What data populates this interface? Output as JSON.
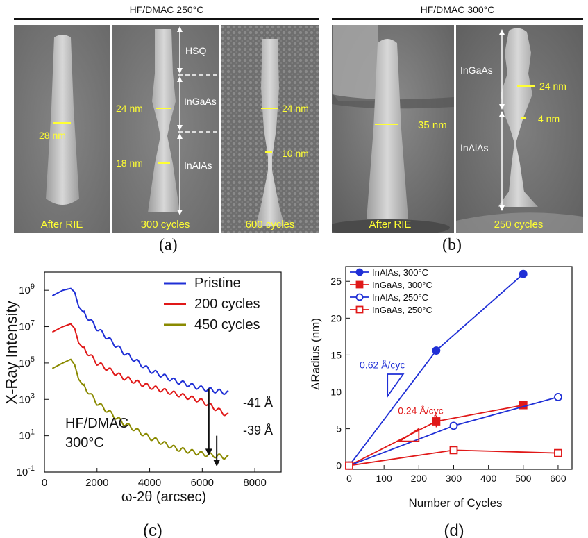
{
  "panel_a": {
    "header": "HF/DMAC 250°C",
    "label": "(a)",
    "img1": {
      "dim": "28 nm",
      "caption": "After RIE"
    },
    "img2": {
      "hsq": "HSQ",
      "ingaas": "InGaAs",
      "inalas": "InAlAs",
      "dim_top": "24 nm",
      "dim_bot": "18 nm",
      "caption": "300 cycles"
    },
    "img3": {
      "dim_top": "24 nm",
      "dim_bot": "10 nm",
      "caption": "600 cycles"
    }
  },
  "panel_b": {
    "header": "HF/DMAC 300°C",
    "label": "(b)",
    "img1": {
      "dim": "35 nm",
      "caption": "After RIE"
    },
    "img2": {
      "ingaas": "InGaAs",
      "inalas": "InAlAs",
      "dim_top": "24 nm",
      "dim_bot": "4 nm",
      "caption": "250 cycles"
    }
  },
  "panel_c": {
    "label": "(c)",
    "annotation_condition": "HF/DMAC",
    "annotation_temp": "300°C",
    "shift1": "-41 Å",
    "shift2": "-39 Å",
    "chart_data": {
      "type": "line",
      "xlabel": "ω-2θ (arcsec)",
      "ylabel": "X-Ray Intensity",
      "xlim": [
        0,
        9000
      ],
      "ylim_log10": [
        -1,
        10
      ],
      "log_y": true,
      "x_ticks": [
        "0",
        "2000",
        "4000",
        "6000",
        "8000"
      ],
      "y_ticks": [
        "10-1",
        "101",
        "103",
        "105",
        "107",
        "109"
      ],
      "legend_position": "top-right",
      "series": [
        {
          "name": "Pristine",
          "color": "#1f2fd6",
          "x": [
            300,
            700,
            1000,
            1150,
            1300,
            2000,
            3000,
            4000,
            5000,
            6000,
            7000
          ],
          "log10_y": [
            8.7,
            9.0,
            9.1,
            8.9,
            8.1,
            6.9,
            5.6,
            4.6,
            4.0,
            3.6,
            3.35
          ]
        },
        {
          "name": "200 cycles",
          "color": "#e01818",
          "x": [
            300,
            700,
            1000,
            1150,
            1300,
            2000,
            3000,
            4000,
            5000,
            6000,
            7000
          ],
          "log10_y": [
            6.7,
            7.0,
            7.15,
            6.9,
            6.1,
            5.0,
            4.2,
            3.7,
            3.3,
            2.9,
            2.1
          ]
        },
        {
          "name": "450 cycles",
          "color": "#8a8a00",
          "x": [
            300,
            700,
            1000,
            1150,
            1300,
            2000,
            3000,
            4000,
            5000,
            6000,
            7000
          ],
          "log10_y": [
            4.7,
            5.0,
            5.2,
            4.9,
            4.1,
            2.8,
            1.7,
            0.9,
            0.3,
            0.0,
            -0.2
          ]
        }
      ]
    }
  },
  "panel_d": {
    "label": "(d)",
    "rate1": "0.62 Å/cyc",
    "rate2": "0.24 Å/cyc",
    "chart_data": {
      "type": "line",
      "xlabel": "Number of Cycles",
      "ylabel": "ΔRadius (nm)",
      "xlim": [
        -10,
        640
      ],
      "ylim": [
        -0.5,
        27
      ],
      "x_ticks": [
        0,
        100,
        200,
        300,
        400,
        500,
        600
      ],
      "y_ticks": [
        0,
        5,
        10,
        15,
        20,
        25
      ],
      "legend_position": "top-left",
      "series": [
        {
          "name": "InAlAs, 300°C",
          "color": "#1f2fd6",
          "marker": "circle",
          "filled": true,
          "x": [
            0,
            250,
            500
          ],
          "y": [
            0,
            15.6,
            26
          ]
        },
        {
          "name": "InGaAs, 300°C",
          "color": "#e01818",
          "marker": "square",
          "filled": true,
          "x": [
            0,
            250,
            500
          ],
          "y": [
            0,
            6,
            8.2
          ]
        },
        {
          "name": "InAlAs, 250°C",
          "color": "#1f2fd6",
          "marker": "circle",
          "filled": false,
          "x": [
            0,
            300,
            600
          ],
          "y": [
            0,
            5.4,
            9.3
          ]
        },
        {
          "name": "InGaAs, 250°C",
          "color": "#e01818",
          "marker": "square",
          "filled": false,
          "x": [
            0,
            300,
            600
          ],
          "y": [
            0,
            2.1,
            1.7
          ]
        }
      ]
    }
  }
}
